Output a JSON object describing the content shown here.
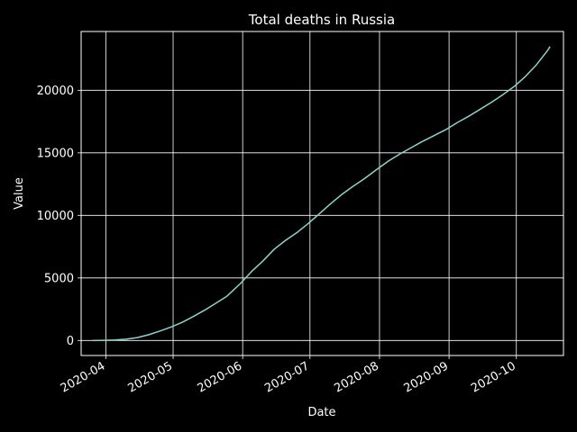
{
  "chart_data": {
    "type": "line",
    "title": "Total deaths in Russia",
    "xlabel": "Date",
    "ylabel": "Value",
    "background": "#000000",
    "foreground": "#ffffff",
    "grid": true,
    "xlim": [
      "2020-03-21",
      "2020-10-22"
    ],
    "ylim": [
      -1200,
      24700
    ],
    "x_ticks": [
      {
        "date": "2020-04-01",
        "label": "2020-04"
      },
      {
        "date": "2020-05-01",
        "label": "2020-05"
      },
      {
        "date": "2020-06-01",
        "label": "2020-06"
      },
      {
        "date": "2020-07-01",
        "label": "2020-07"
      },
      {
        "date": "2020-08-01",
        "label": "2020-08"
      },
      {
        "date": "2020-09-01",
        "label": "2020-09"
      },
      {
        "date": "2020-10-01",
        "label": "2020-10"
      }
    ],
    "y_ticks": [
      0,
      5000,
      10000,
      15000,
      20000
    ],
    "series": [
      {
        "name": "",
        "color": "#8dd3c7",
        "points": [
          [
            "2020-03-26",
            0
          ],
          [
            "2020-04-01",
            17
          ],
          [
            "2020-04-05",
            43
          ],
          [
            "2020-04-10",
            106
          ],
          [
            "2020-04-15",
            232
          ],
          [
            "2020-04-20",
            456
          ],
          [
            "2020-04-25",
            747
          ],
          [
            "2020-04-30",
            1073
          ],
          [
            "2020-05-05",
            1451
          ],
          [
            "2020-05-10",
            1915
          ],
          [
            "2020-05-15",
            2418
          ],
          [
            "2020-05-20",
            2972
          ],
          [
            "2020-05-25",
            3541
          ],
          [
            "2020-05-31",
            4555
          ],
          [
            "2020-06-05",
            5520
          ],
          [
            "2020-06-10",
            6350
          ],
          [
            "2020-06-15",
            7284
          ],
          [
            "2020-06-20",
            7992
          ],
          [
            "2020-06-25",
            8600
          ],
          [
            "2020-06-30",
            9320
          ],
          [
            "2020-07-05",
            10100
          ],
          [
            "2020-07-10",
            10900
          ],
          [
            "2020-07-15",
            11650
          ],
          [
            "2020-07-20",
            12300
          ],
          [
            "2020-07-25",
            12900
          ],
          [
            "2020-07-31",
            13700
          ],
          [
            "2020-08-05",
            14350
          ],
          [
            "2020-08-10",
            14900
          ],
          [
            "2020-08-15",
            15400
          ],
          [
            "2020-08-20",
            15900
          ],
          [
            "2020-08-25",
            16350
          ],
          [
            "2020-08-31",
            16900
          ],
          [
            "2020-09-05",
            17450
          ],
          [
            "2020-09-10",
            17950
          ],
          [
            "2020-09-15",
            18500
          ],
          [
            "2020-09-20",
            19050
          ],
          [
            "2020-09-25",
            19650
          ],
          [
            "2020-09-30",
            20300
          ],
          [
            "2020-10-05",
            21100
          ],
          [
            "2020-10-10",
            22050
          ],
          [
            "2020-10-15",
            23200
          ],
          [
            "2020-10-16",
            23500
          ]
        ]
      }
    ]
  }
}
